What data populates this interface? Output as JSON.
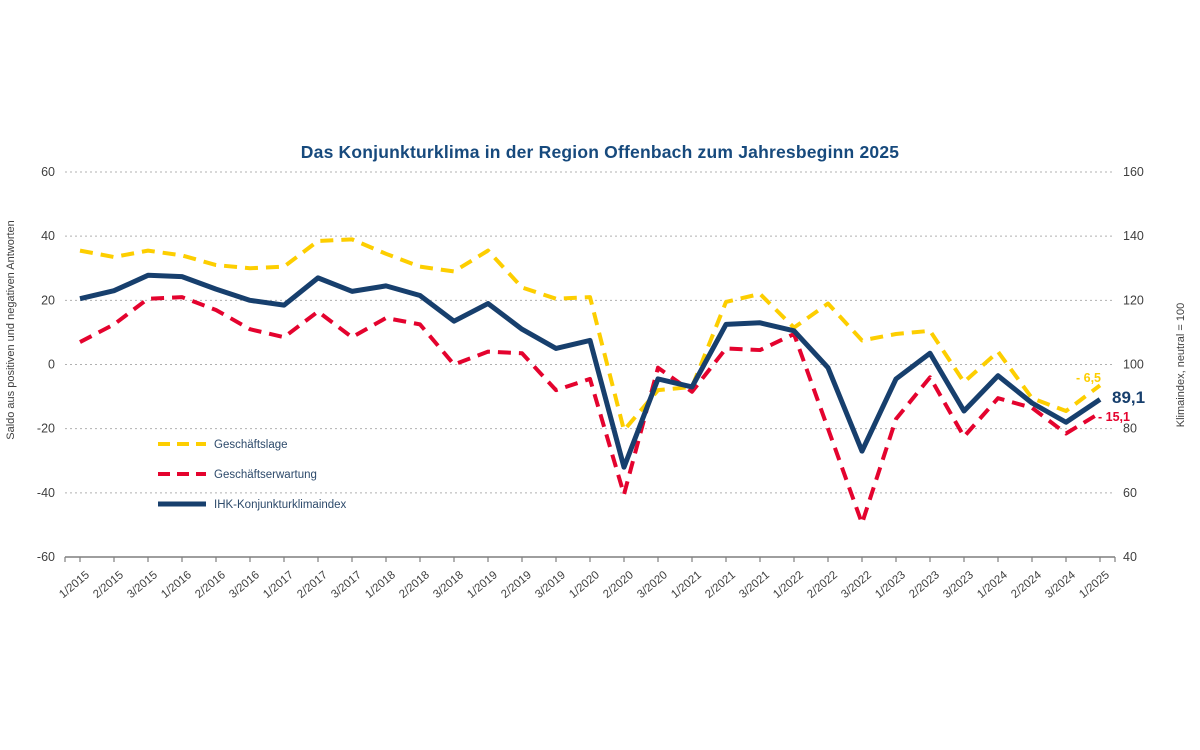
{
  "title": "Das Konjunkturklima in der Region Offenbach zum Jahresbeginn 2025",
  "colors": {
    "title_blue": "#174a7d",
    "lage_yellow": "#fdce00",
    "erwartung_red": "#e4032e",
    "index_navy": "#173f6d",
    "grid_gray": "#b0b0b0",
    "axis_gray": "#7f7f7f",
    "tick_text": "#3f3f3f"
  },
  "legend": [
    {
      "label": "Geschäftslage",
      "color": "#fdce00",
      "dashed": true
    },
    {
      "label": "Geschäftserwartung",
      "color": "#e4032e",
      "dashed": true
    },
    {
      "label": "IHK-Konjunkturklimaindex",
      "color": "#173f6d",
      "dashed": false
    }
  ],
  "end_labels": [
    {
      "series": "Geschäftslage",
      "text": "- 6,5",
      "color": "#fdce00"
    },
    {
      "series": "IHK-Konjunkturklimaindex",
      "text": "89,1",
      "color": "#173f6d"
    },
    {
      "series": "Geschäftserwartung",
      "text": "- 15,1",
      "color": "#e4032e"
    }
  ],
  "chart_data": {
    "type": "line",
    "title": "Das Konjunkturklima in der Region Offenbach zum Jahresbeginn 2025",
    "categories": [
      "1/2015",
      "2/2015",
      "3/2015",
      "1/2016",
      "2/2016",
      "3/2016",
      "1/2017",
      "2/2017",
      "3/2017",
      "1/2018",
      "2/2018",
      "3/2018",
      "1/2019",
      "2/2019",
      "3/2019",
      "1/2020",
      "2/2020",
      "3/2020",
      "1/2021",
      "2/2021",
      "3/2021",
      "1/2022",
      "2/2022",
      "3/2022",
      "1/2023",
      "2/2023",
      "3/2023",
      "1/2024",
      "2/2024",
      "3/2024",
      "1/2025"
    ],
    "y_left": {
      "label": "Saldo aus positiven und negativen Antworten",
      "range": [
        -60,
        60
      ],
      "ticks": [
        60,
        40,
        20,
        0,
        -20,
        -40,
        -60
      ]
    },
    "y_right": {
      "label": "Klimaindex, neutral = 100",
      "range": [
        40,
        160
      ],
      "ticks": [
        160,
        140,
        120,
        100,
        80,
        60,
        40
      ]
    },
    "grid": "horizontal-dotted",
    "legend_position": "inside-left-bottom",
    "series": [
      {
        "name": "Geschäftslage",
        "axis": "left",
        "style": "dashed",
        "color": "#fdce00",
        "values": [
          35.5,
          33.5,
          35.5,
          34,
          31,
          30,
          30.5,
          38.5,
          39,
          34.5,
          30.5,
          29,
          35.5,
          24,
          20.5,
          21,
          -20.5,
          -8,
          -7,
          19.5,
          22,
          11.5,
          19,
          7.5,
          9.5,
          10.5,
          -5.5,
          4,
          -10.5,
          -14.5,
          -6.5
        ]
      },
      {
        "name": "Geschäftserwartung",
        "axis": "left",
        "style": "dashed",
        "color": "#e4032e",
        "values": [
          7,
          12.5,
          20.5,
          21,
          17,
          11,
          8.5,
          16.5,
          8.5,
          14.5,
          12.5,
          0,
          4,
          3.5,
          -8,
          -4.5,
          -40.5,
          -1,
          -8.5,
          5,
          4.5,
          9.5,
          -20,
          -49.5,
          -17,
          -4,
          -22.5,
          -10.5,
          -13.5,
          -21.5,
          -15.1
        ]
      },
      {
        "name": "IHK-Konjunkturklimaindex",
        "axis": "right",
        "style": "solid",
        "color": "#173f6d",
        "values": [
          120.5,
          123,
          127.8,
          127.4,
          123.5,
          120,
          118.5,
          127,
          122.8,
          124.5,
          121.5,
          113.5,
          119,
          111,
          105,
          107.5,
          68,
          95.5,
          93,
          112.5,
          113,
          110.5,
          99,
          73,
          95.5,
          103.5,
          85.5,
          96.5,
          88,
          82,
          89.1
        ]
      }
    ]
  }
}
